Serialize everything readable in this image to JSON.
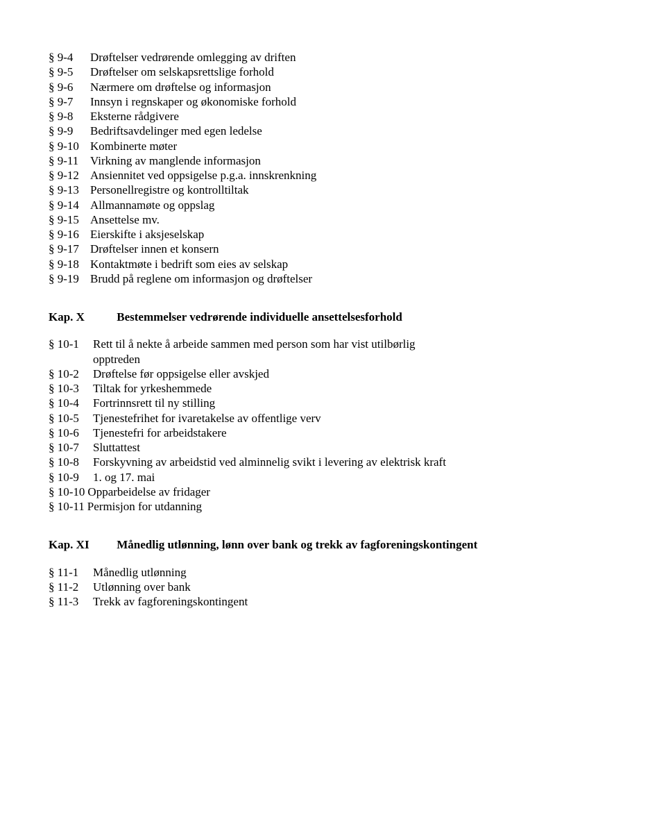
{
  "block1": {
    "items": [
      {
        "sec": "§ 9-4",
        "label": "Drøftelser vedrørende omlegging av driften"
      },
      {
        "sec": "§ 9-5",
        "label": "Drøftelser om selskapsrettslige forhold"
      },
      {
        "sec": "§ 9-6",
        "label": "Nærmere om drøftelse og informasjon"
      },
      {
        "sec": "§ 9-7",
        "label": "Innsyn i regnskaper og økonomiske forhold"
      },
      {
        "sec": "§ 9-8",
        "label": "Eksterne rådgivere"
      },
      {
        "sec": "§ 9-9",
        "label": "Bedriftsavdelinger med egen ledelse"
      },
      {
        "sec": "§ 9-10",
        "label": "Kombinerte møter"
      },
      {
        "sec": "§ 9-11",
        "label": "Virkning av manglende informasjon"
      },
      {
        "sec": "§ 9-12",
        "label": "Ansiennitet ved oppsigelse p.g.a. innskrenkning"
      },
      {
        "sec": "§ 9-13",
        "label": "Personellregistre og kontrolltiltak"
      },
      {
        "sec": "§ 9-14",
        "label": "Allmannamøte og oppslag"
      },
      {
        "sec": "§ 9-15",
        "label": "Ansettelse mv."
      },
      {
        "sec": "§ 9-16",
        "label": "Eierskifte i aksjeselskap"
      },
      {
        "sec": "§ 9-17",
        "label": "Drøftelser innen et konsern"
      },
      {
        "sec": "§ 9-18",
        "label": "Kontaktmøte i bedrift som eies av selskap"
      },
      {
        "sec": "§ 9-19",
        "label": "Brudd på reglene om informasjon og drøftelser"
      }
    ]
  },
  "kapX": {
    "key": "Kap. X",
    "title": "Bestemmelser vedrørende individuelle ansettelsesforhold",
    "items": [
      {
        "sec": "§ 10-1",
        "label": "Rett til å nekte å arbeide sammen med person som har vist utilbørlig",
        "cont": "opptreden"
      },
      {
        "sec": "§ 10-2",
        "label": "Drøftelse før oppsigelse eller avskjed"
      },
      {
        "sec": "§ 10-3",
        "label": "Tiltak for yrkeshemmede"
      },
      {
        "sec": "§ 10-4",
        "label": "Fortrinnsrett til ny stilling"
      },
      {
        "sec": "§ 10-5",
        "label": "Tjenestefrihet for ivaretakelse av offentlige verv"
      },
      {
        "sec": "§ 10-6",
        "label": "Tjenestefri for arbeidstakere"
      },
      {
        "sec": "§ 10-7",
        "label": "Sluttattest"
      },
      {
        "sec": "§ 10-8",
        "label": "Forskyvning av arbeidstid ved alminnelig svikt i levering av elektrisk kraft"
      },
      {
        "sec": "§ 10-9",
        "label": "1. og 17. mai"
      },
      {
        "sec": "§ 10-10",
        "label": "Opparbeidelse av fridager",
        "nosp": true
      },
      {
        "sec": "§ 10-11",
        "label": "Permisjon for utdanning",
        "nosp": true
      }
    ]
  },
  "kapXI": {
    "key": "Kap. XI",
    "title": "Månedlig utlønning, lønn over bank og trekk av fagforeningskontingent",
    "items": [
      {
        "sec": "§ 11-1",
        "label": "Månedlig utlønning"
      },
      {
        "sec": "§ 11-2",
        "label": "Utlønning over bank"
      },
      {
        "sec": "§ 11-3",
        "label": "Trekk av fagforeningskontingent"
      }
    ]
  }
}
